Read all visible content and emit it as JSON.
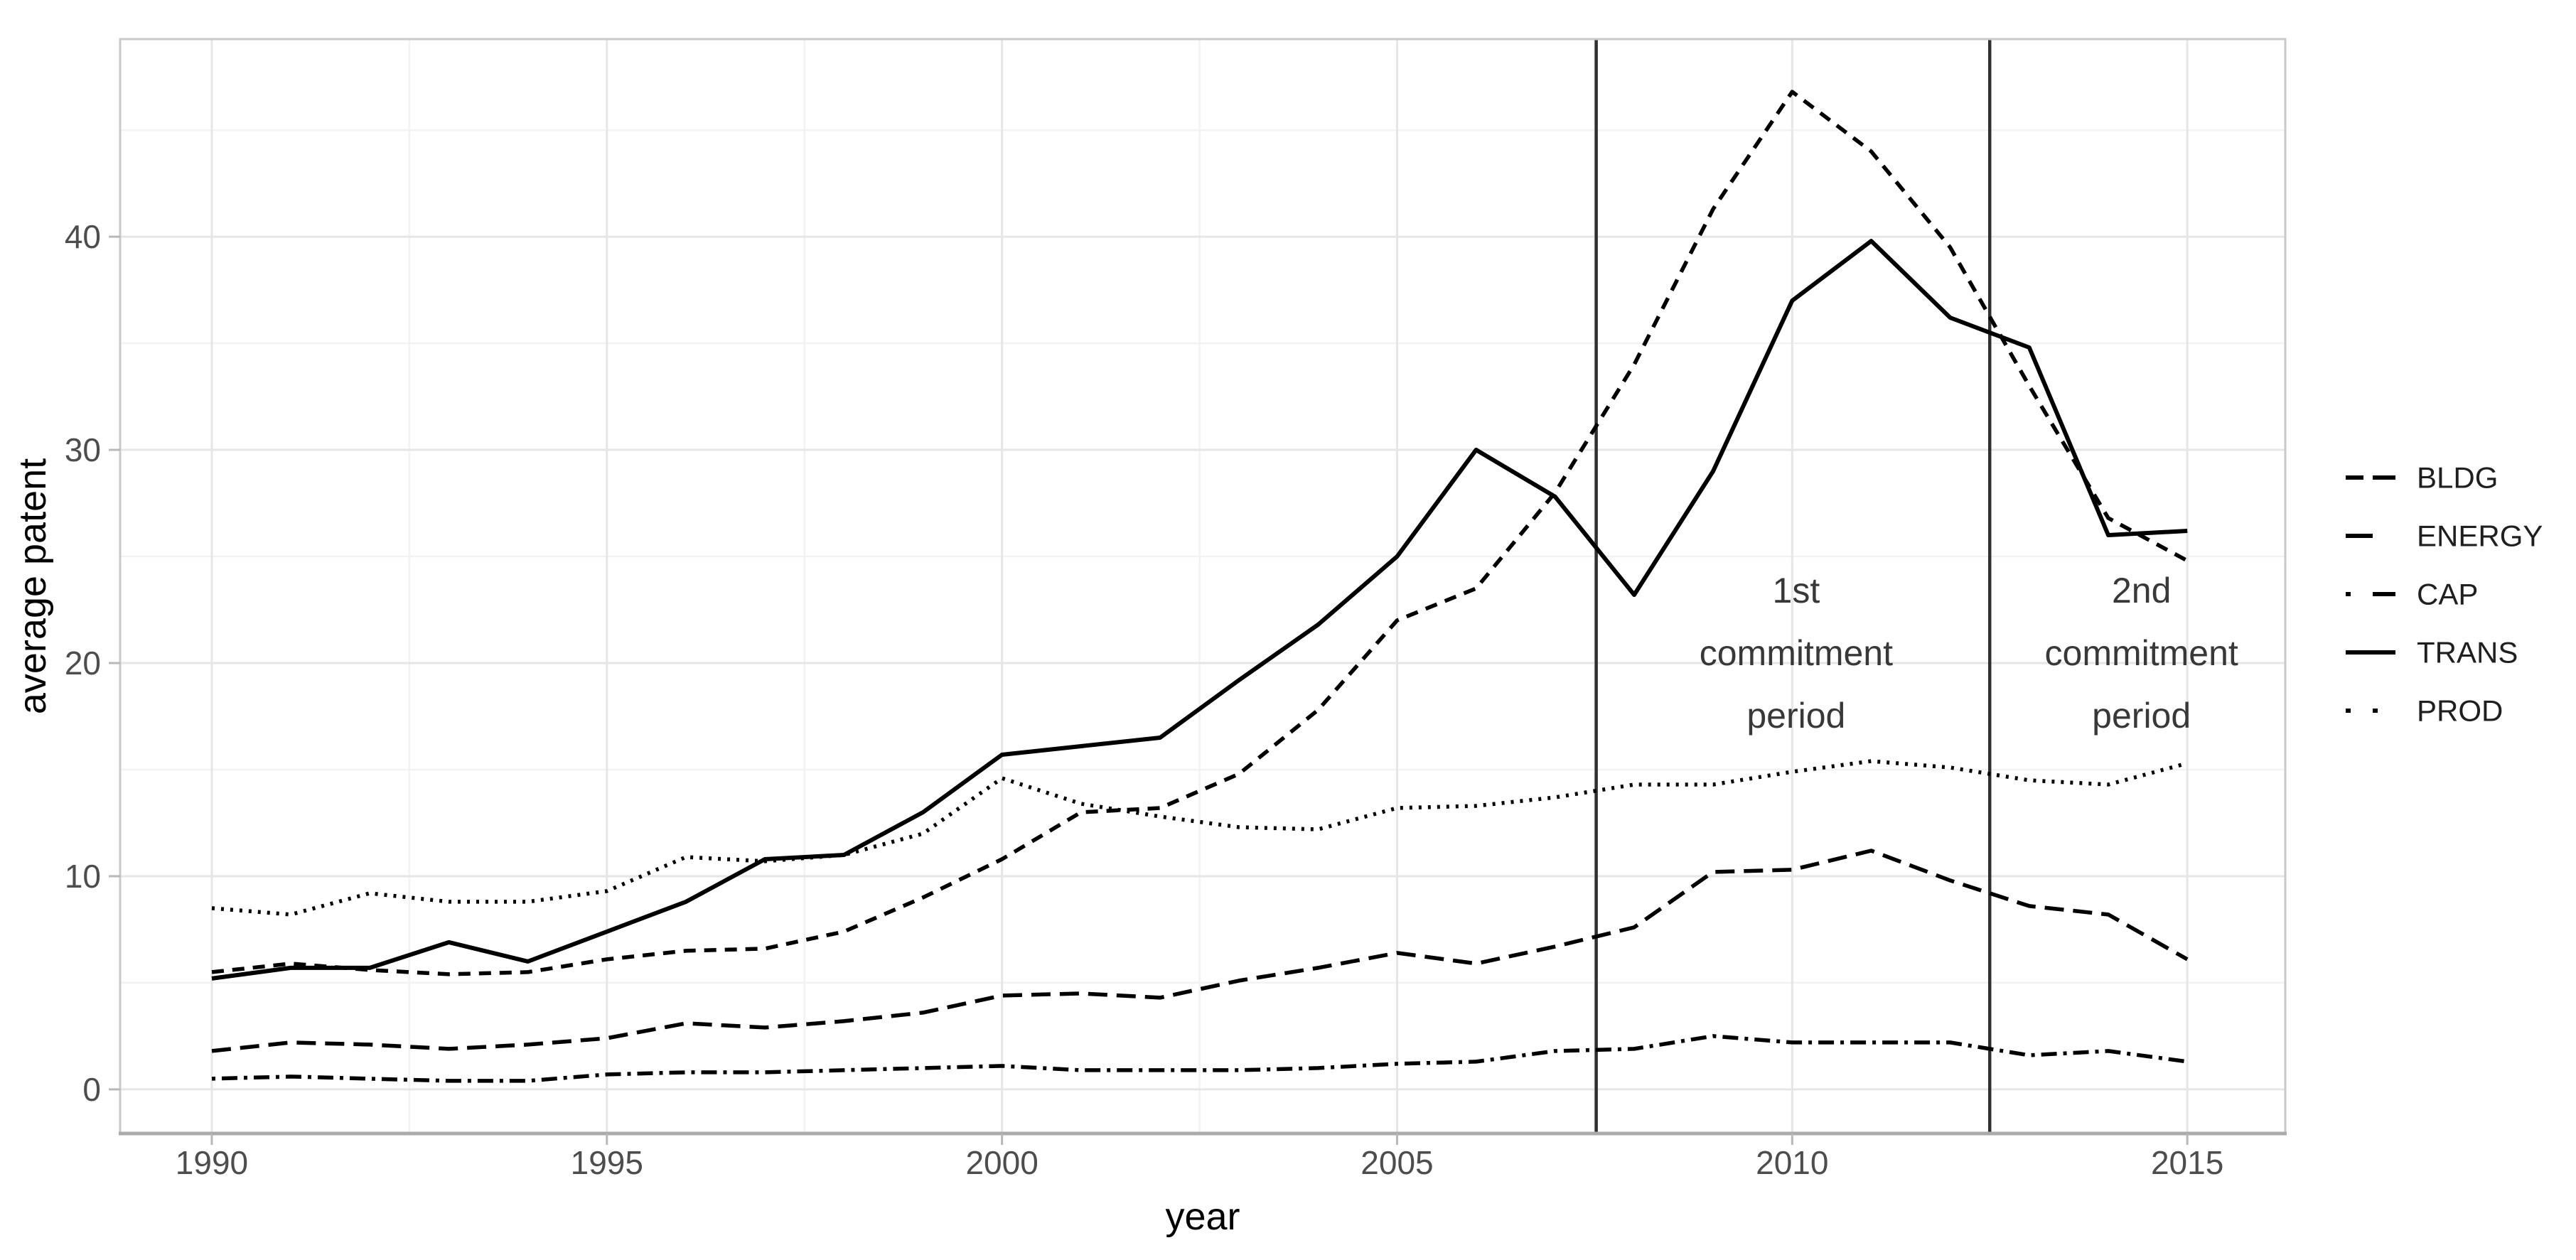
{
  "chart_data": {
    "type": "line",
    "title": "",
    "xlabel": "year",
    "ylabel": "average patent",
    "x": [
      1990,
      1991,
      1992,
      1993,
      1994,
      1995,
      1996,
      1997,
      1998,
      1999,
      2000,
      2001,
      2002,
      2003,
      2004,
      2005,
      2006,
      2007,
      2008,
      2009,
      2010,
      2011,
      2012,
      2013,
      2014,
      2015
    ],
    "xlim": [
      1988.84,
      2016.24
    ],
    "ylim": [
      -2.07,
      49.27
    ],
    "xticks": [
      1990,
      1995,
      2000,
      2005,
      2010,
      2015
    ],
    "xtick_labels": [
      "1990",
      "1995",
      "2000",
      "2005",
      "2010",
      "2015"
    ],
    "yticks": [
      0,
      10,
      20,
      30,
      40
    ],
    "ytick_labels": [
      "0",
      "10",
      "20",
      "30",
      "40"
    ],
    "xminor": [
      1992.5,
      1997.5,
      2002.5,
      2007.5,
      2012.5
    ],
    "yminor": [
      5,
      15,
      25,
      35,
      45
    ],
    "grid": "major+minor",
    "legend_position": "right",
    "series": [
      {
        "name": "BLDG",
        "linetype": "dashed",
        "values": [
          5.5,
          5.9,
          5.6,
          5.4,
          5.5,
          6.1,
          6.5,
          6.6,
          7.4,
          9.0,
          10.8,
          13.0,
          13.2,
          14.8,
          17.8,
          22.0,
          23.5,
          28.0,
          34.0,
          41.3,
          46.8,
          44.0,
          39.5,
          33.0,
          26.8,
          24.8
        ]
      },
      {
        "name": "ENERGY",
        "linetype": "longdash",
        "values": [
          1.8,
          2.2,
          2.1,
          1.9,
          2.1,
          2.4,
          3.1,
          2.9,
          3.2,
          3.6,
          4.4,
          4.5,
          4.3,
          5.1,
          5.7,
          6.4,
          5.9,
          6.7,
          7.6,
          10.2,
          10.3,
          11.2,
          9.8,
          8.6,
          8.2,
          6.1
        ]
      },
      {
        "name": "CAP",
        "linetype": "dotdash",
        "values": [
          0.5,
          0.6,
          0.5,
          0.4,
          0.4,
          0.7,
          0.8,
          0.8,
          0.9,
          1.0,
          1.1,
          0.9,
          0.9,
          0.9,
          1.0,
          1.2,
          1.3,
          1.8,
          1.9,
          2.5,
          2.2,
          2.2,
          2.2,
          1.6,
          1.8,
          1.3
        ]
      },
      {
        "name": "TRANS",
        "linetype": "solid",
        "values": [
          5.2,
          5.7,
          5.7,
          6.9,
          6.0,
          7.4,
          8.8,
          10.8,
          11.0,
          13.0,
          15.7,
          16.1,
          16.5,
          19.2,
          21.8,
          25.0,
          30.0,
          27.8,
          23.2,
          29.0,
          37.0,
          39.8,
          36.2,
          34.8,
          26.0,
          26.2
        ]
      },
      {
        "name": "PROD",
        "linetype": "dotted",
        "values": [
          8.5,
          8.2,
          9.2,
          8.8,
          8.8,
          9.3,
          10.9,
          10.7,
          11.0,
          12.0,
          14.6,
          13.4,
          12.8,
          12.3,
          12.2,
          13.2,
          13.3,
          13.7,
          14.3,
          14.3,
          14.9,
          15.4,
          15.1,
          14.5,
          14.3,
          15.3
        ]
      }
    ],
    "annotations": {
      "vlines": [
        {
          "x_year": 2007.52
        },
        {
          "x_year": 2012.5
        }
      ],
      "labels": [
        {
          "lines": [
            "1st",
            "commitment",
            "period"
          ],
          "x_year": 2010.05,
          "y_value": 19.9
        },
        {
          "lines": [
            "2nd",
            "commitment",
            "period"
          ],
          "x_year": 2014.42,
          "y_value": 19.9
        }
      ]
    },
    "colors": {
      "series_stroke": "#000000",
      "tick_label": "#4d4d4d",
      "axis_title": "#000000",
      "legend_label": "#1f1f1f",
      "annotation_text": "#383838",
      "vline": "#303030",
      "grid_major": "#e6e6e6",
      "grid_minor": "#f2f2f2",
      "panel_border": "#c9c9c9",
      "axis_line": "#ababab",
      "tick_mark": "#b8b8b8",
      "background": "#ffffff"
    }
  }
}
